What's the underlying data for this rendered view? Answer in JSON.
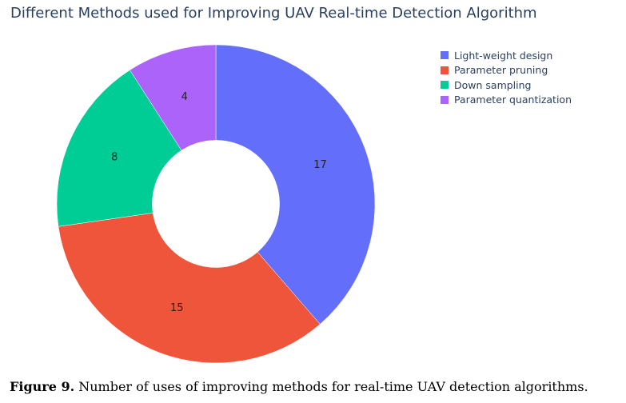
{
  "chart_data": {
    "type": "pie",
    "title": "Different Methods used for Improving UAV Real-time Detection Algorithm",
    "hole": 0.4,
    "legend_position": "top-right",
    "categories": [
      "Light-weight design",
      "Parameter pruning",
      "Down sampling",
      "Parameter quantization"
    ],
    "values": [
      17,
      15,
      8,
      4
    ],
    "colors": [
      "#636efa",
      "#ef553b",
      "#00cc96",
      "#ab63fa"
    ]
  },
  "caption": {
    "label": "Figure 9.",
    "text": " Number of uses of improving methods for real-time UAV detection algorithms."
  }
}
